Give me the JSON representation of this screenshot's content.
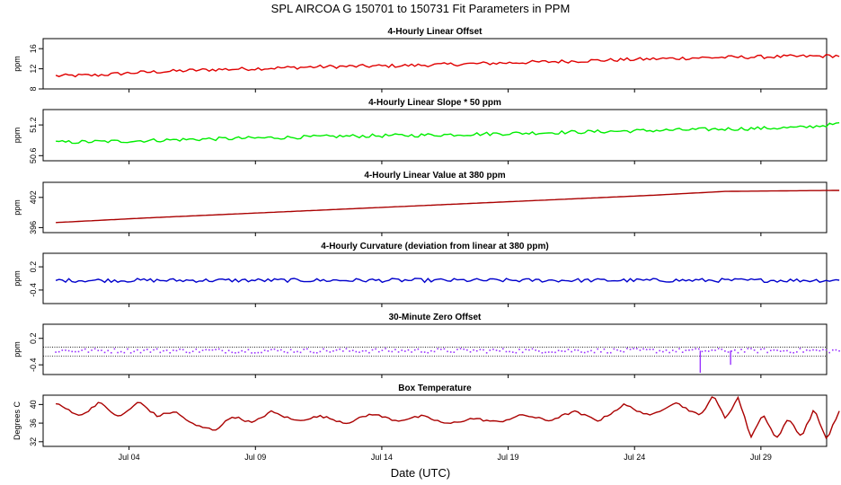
{
  "figure": {
    "title": "SPL   AIRCOA G   150701 to 150731   Fit Parameters in PPM",
    "xlabel": "Date (UTC)",
    "x_ticks": [
      "Jul 04",
      "Jul 09",
      "Jul 14",
      "Jul 19",
      "Jul 24",
      "Jul 29"
    ]
  },
  "chart_data": [
    {
      "type": "line",
      "title": "4-Hourly Linear Offset",
      "ylabel": "ppm",
      "color": "#e00000",
      "ylim": [
        8,
        18
      ],
      "yticks": [
        "8",
        "12",
        "16"
      ],
      "ytick_values": [
        8,
        12,
        16
      ],
      "x_range": [
        0,
        31
      ],
      "x": [
        0.5,
        2,
        3.5,
        5,
        6.5,
        8,
        9.5,
        11,
        12.5,
        14,
        15.5,
        17,
        18.5,
        20,
        21.5,
        23,
        24.5,
        26,
        27.5,
        29,
        30.5,
        31.5
      ],
      "y": [
        10.6,
        10.7,
        11.2,
        11.5,
        11.8,
        12.0,
        12.2,
        12.4,
        12.5,
        12.6,
        12.8,
        13.0,
        13.2,
        13.4,
        13.6,
        13.8,
        14.0,
        14.2,
        14.3,
        14.4,
        14.5,
        14.6
      ],
      "noise": 0.35
    },
    {
      "type": "line",
      "title": "4-Hourly Linear Slope * 50 ppm",
      "ylabel": "ppm",
      "color": "#00ee00",
      "ylim": [
        50.5,
        51.5
      ],
      "yticks": [
        "50.6",
        "51.2"
      ],
      "ytick_values": [
        50.6,
        51.2
      ],
      "x_range": [
        0,
        31
      ],
      "x": [
        0.5,
        3,
        6,
        9,
        12,
        15,
        18,
        21,
        24,
        27,
        30,
        31.5
      ],
      "y": [
        50.86,
        50.88,
        50.92,
        50.95,
        50.98,
        51.0,
        51.03,
        51.06,
        51.09,
        51.12,
        51.15,
        51.22
      ],
      "noise": 0.035
    },
    {
      "type": "line",
      "title": "4-Hourly Linear Value at 380 ppm",
      "ylabel": "ppm",
      "color": "#aa0000",
      "ylim": [
        395,
        405
      ],
      "yticks": [
        "396",
        "402"
      ],
      "ytick_values": [
        396,
        402
      ],
      "x_range": [
        0,
        31
      ],
      "x": [
        0.5,
        4,
        8,
        12,
        16,
        20,
        24,
        27,
        31.5
      ],
      "y": [
        397.0,
        397.9,
        398.8,
        399.7,
        400.6,
        401.5,
        402.4,
        403.2,
        403.4
      ],
      "noise": 0.0
    },
    {
      "type": "line",
      "title": "4-Hourly Curvature (deviation from linear at 380 ppm)",
      "ylabel": "ppm",
      "color": "#0000cc",
      "ylim": [
        -0.75,
        0.55
      ],
      "yticks": [
        "-0.4",
        "0.2"
      ],
      "ytick_values": [
        -0.4,
        0.2
      ],
      "x_range": [
        0,
        31
      ],
      "x": [
        0.5,
        31.5
      ],
      "y": [
        -0.15,
        -0.15
      ],
      "noise": 0.05
    },
    {
      "type": "scatter",
      "title": "30-Minute Zero Offset",
      "ylabel": "ppm",
      "color": "#9933ff",
      "ylim": [
        -0.62,
        0.52
      ],
      "yticks": [
        "-0.4",
        "0.2"
      ],
      "ytick_values": [
        -0.4,
        0.2
      ],
      "reference_lines": [
        0,
        -0.2
      ],
      "x_range": [
        0,
        31
      ],
      "x": [
        0.5,
        31.5
      ],
      "y": [
        -0.08,
        -0.08
      ],
      "noise": 0.05,
      "spikes": [
        {
          "x": 26.0,
          "y": -0.58
        },
        {
          "x": 27.2,
          "y": -0.4
        }
      ]
    },
    {
      "type": "line",
      "title": "Box Temperature",
      "ylabel": "Degrees C",
      "color": "#aa0000",
      "ylim": [
        31,
        42
      ],
      "yticks": [
        "32",
        "36",
        "40"
      ],
      "ytick_values": [
        32,
        36,
        40
      ],
      "x_range": [
        0,
        31
      ],
      "x": [
        0.5,
        1.5,
        2.2,
        3.0,
        3.8,
        4.5,
        5.2,
        6.0,
        6.8,
        7.5,
        8.3,
        9.0,
        10.0,
        11.0,
        12.0,
        13.0,
        14.0,
        15.0,
        16.0,
        17.0,
        18.0,
        19.0,
        20.0,
        21.0,
        22.0,
        23.0,
        24.0,
        25.0,
        26.0,
        26.5,
        27.0,
        27.5,
        28.0,
        28.5,
        29.0,
        29.5,
        30.0,
        30.5,
        31.0,
        31.5
      ],
      "y": [
        40.2,
        37.5,
        40.5,
        37.2,
        40.6,
        37.5,
        38.5,
        35.5,
        34.5,
        37.5,
        36.0,
        38.5,
        36.5,
        37.5,
        36.0,
        38.0,
        36.5,
        37.5,
        35.8,
        37.0,
        36.2,
        37.8,
        36.5,
        38.5,
        36.5,
        40.0,
        37.5,
        40.5,
        37.5,
        42.0,
        37.0,
        41.5,
        33.0,
        38.0,
        32.5,
        37.0,
        33.0,
        39.0,
        32.5,
        38.5
      ],
      "noise": 0.25
    }
  ]
}
